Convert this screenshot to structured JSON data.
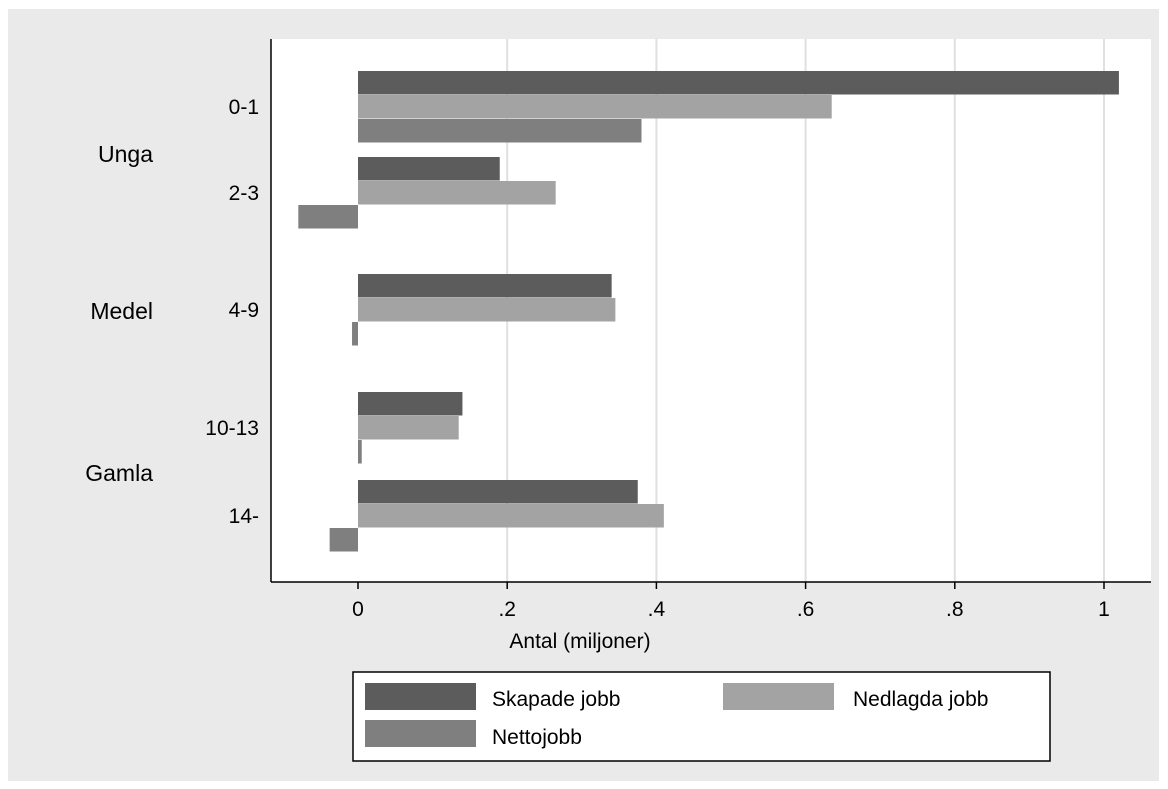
{
  "chart_data": {
    "type": "bar",
    "orientation": "horizontal",
    "groups": [
      {
        "label": "Unga",
        "categories": [
          "0-1",
          "2-3"
        ]
      },
      {
        "label": "Medel",
        "categories": [
          "4-9"
        ]
      },
      {
        "label": "Gamla",
        "categories": [
          "10-13",
          "14-"
        ]
      }
    ],
    "categories": [
      "0-1",
      "2-3",
      "4-9",
      "10-13",
      "14-"
    ],
    "series": [
      {
        "name": "Skapade jobb",
        "color": "#5c5c5c",
        "values": [
          1.02,
          0.19,
          0.34,
          0.14,
          0.375
        ]
      },
      {
        "name": "Nedlagda jobb",
        "color": "#a3a3a3",
        "values": [
          0.635,
          0.265,
          0.345,
          0.135,
          0.41
        ]
      },
      {
        "name": "Nettojobb",
        "color": "#7f7f7f",
        "values": [
          0.38,
          -0.08,
          -0.008,
          0.005,
          -0.038
        ]
      }
    ],
    "xlabel": "Antal (miljoner)",
    "xlim": [
      -0.12,
      1.06
    ],
    "xticks": [
      0,
      0.2,
      0.4,
      0.6,
      0.8,
      1
    ],
    "xtick_labels": [
      "0",
      ".2",
      ".4",
      ".6",
      ".8",
      "1"
    ],
    "grid": true,
    "legend_position": "bottom"
  }
}
